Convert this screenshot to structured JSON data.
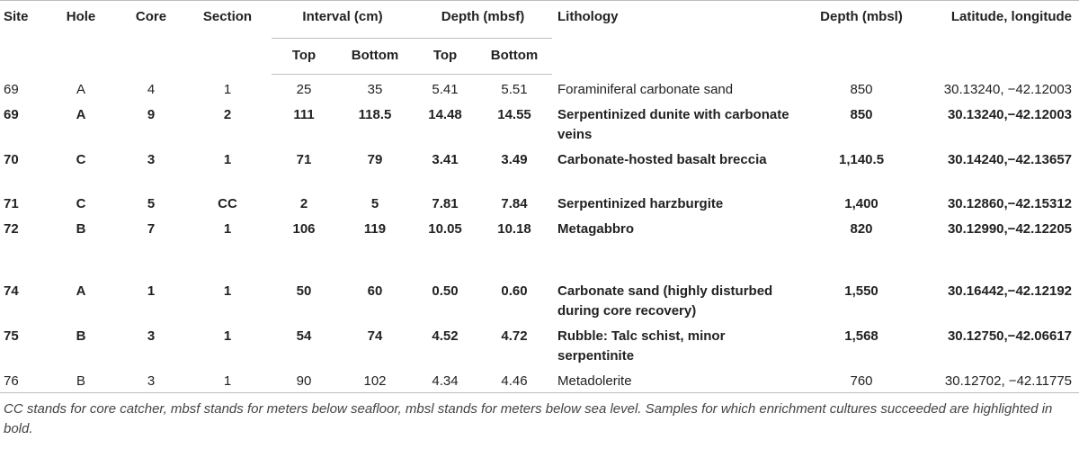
{
  "header": {
    "site": "Site",
    "hole": "Hole",
    "core": "Core",
    "section": "Section",
    "interval": "Interval (cm)",
    "depth_mbsf": "Depth (mbsf)",
    "top": "Top",
    "bottom": "Bottom",
    "lithology": "Lithology",
    "depth_mbsl": "Depth (mbsl)",
    "latlon": "Latitude, longitude"
  },
  "rows": [
    {
      "site": "69",
      "hole": "A",
      "core": "4",
      "section": "1",
      "int_top": "25",
      "int_bottom": "35",
      "dep_top": "5.41",
      "dep_bottom": "5.51",
      "lithology": "Foraminiferal carbonate sand",
      "mbsl": "850",
      "latlon": "30.13240, −42.12003",
      "bold": false
    },
    {
      "site": "69",
      "hole": "A",
      "core": "9",
      "section": "2",
      "int_top": "111",
      "int_bottom": "118.5",
      "dep_top": "14.48",
      "dep_bottom": "14.55",
      "lithology": "Serpentinized dunite with carbonate veins",
      "mbsl": "850",
      "latlon": "30.13240,−42.12003",
      "bold": true
    },
    {
      "site": "70",
      "hole": "C",
      "core": "3",
      "section": "1",
      "int_top": "71",
      "int_bottom": "79",
      "dep_top": "3.41",
      "dep_bottom": "3.49",
      "lithology": "Carbonate-hosted basalt breccia",
      "mbsl": "1,140.5",
      "latlon": "30.14240,−42.13657",
      "bold": true
    },
    {
      "site": "71",
      "hole": "C",
      "core": "5",
      "section": "CC",
      "int_top": "2",
      "int_bottom": "5",
      "dep_top": "7.81",
      "dep_bottom": "7.84",
      "lithology": "Serpentinized harzburgite",
      "mbsl": "1,400",
      "latlon": "30.12860,−42.15312",
      "bold": true
    },
    {
      "site": "72",
      "hole": "B",
      "core": "7",
      "section": "1",
      "int_top": "106",
      "int_bottom": "119",
      "dep_top": "10.05",
      "dep_bottom": "10.18",
      "lithology": "Metagabbro",
      "mbsl": "820",
      "latlon": "30.12990,−42.12205",
      "bold": true
    },
    {
      "site": "74",
      "hole": "A",
      "core": "1",
      "section": "1",
      "int_top": "50",
      "int_bottom": "60",
      "dep_top": "0.50",
      "dep_bottom": "0.60",
      "lithology": "Carbonate sand (highly disturbed during core recovery)",
      "mbsl": "1,550",
      "latlon": "30.16442,−42.12192",
      "bold": true
    },
    {
      "site": "75",
      "hole": "B",
      "core": "3",
      "section": "1",
      "int_top": "54",
      "int_bottom": "74",
      "dep_top": "4.52",
      "dep_bottom": "4.72",
      "lithology": "Rubble: Talc schist, minor serpentinite",
      "mbsl": "1,568",
      "latlon": "30.12750,−42.06617",
      "bold": true
    },
    {
      "site": "76",
      "hole": "B",
      "core": "3",
      "section": "1",
      "int_top": "90",
      "int_bottom": "102",
      "dep_top": "4.34",
      "dep_bottom": "4.46",
      "lithology": "Metadolerite",
      "mbsl": "760",
      "latlon": "30.12702, −42.11775",
      "bold": false
    }
  ],
  "footnote": "CC stands for core catcher, mbsf stands for meters below seafloor, mbsl stands for meters below sea level. Samples for which enrichment cultures succeeded are highlighted in bold."
}
